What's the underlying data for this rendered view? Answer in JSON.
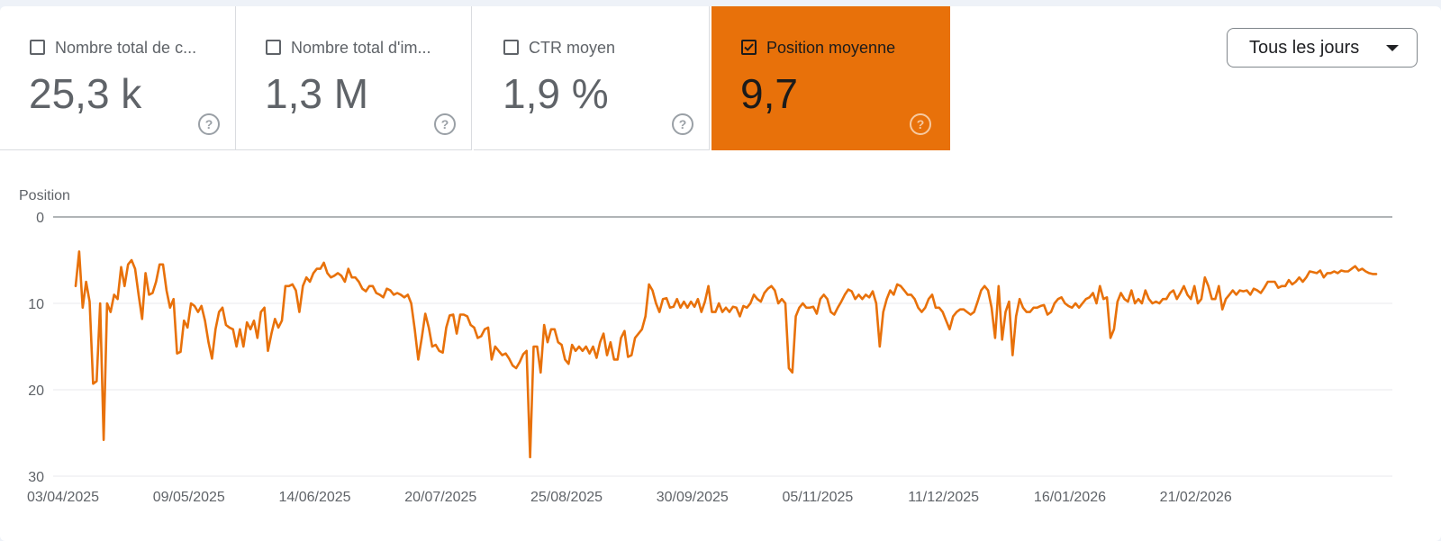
{
  "metrics": [
    {
      "label": "Nombre total de c...",
      "value": "25,3 k",
      "checked": false
    },
    {
      "label": "Nombre total d'im...",
      "value": "1,3 M",
      "checked": false
    },
    {
      "label": "CTR moyen",
      "value": "1,9 %",
      "checked": false
    },
    {
      "label": "Position moyenne",
      "value": "9,7",
      "checked": true
    }
  ],
  "dropdown": {
    "label": "Tous les jours"
  },
  "help_glyph": "?",
  "colors": {
    "accent": "#e8710a",
    "grid": "#e8eaed",
    "axis": "#5f6368",
    "text": "#5f6368"
  },
  "chart_data": {
    "type": "line",
    "ylabel": "Position",
    "ylim": [
      0,
      30
    ],
    "y_reversed": true,
    "yticks": [
      0,
      10,
      20,
      30
    ],
    "grid": true,
    "x_start": "03/04/2025",
    "xtick_labels": [
      "03/04/2025",
      "09/05/2025",
      "14/06/2025",
      "20/07/2025",
      "25/08/2025",
      "30/09/2025",
      "05/11/2025",
      "11/12/2025",
      "16/01/2026",
      "21/02/2026"
    ],
    "series": [
      {
        "values": [
          8.0,
          4.0,
          10.5,
          7.5,
          9.8,
          19.3,
          19.0,
          10.0,
          25.8,
          10.0,
          11.0,
          9.0,
          9.5,
          5.8,
          8.0,
          5.5,
          5.0,
          6.0,
          9.0,
          11.8,
          6.5,
          9.0,
          8.8,
          7.5,
          5.5,
          5.5,
          8.5,
          10.5,
          9.5,
          15.8,
          15.6,
          12.0,
          12.8,
          10.0,
          10.3,
          11.0,
          10.3,
          12.0,
          14.5,
          16.4,
          13.0,
          11.0,
          10.5,
          12.5,
          12.8,
          13.0,
          15.0,
          13.0,
          15.0,
          12.2,
          13.0,
          12.0,
          14.0,
          11.0,
          10.5,
          15.5,
          13.5,
          11.8,
          12.8,
          12.0,
          8.0,
          8.0,
          7.8,
          8.5,
          11.0,
          8.0,
          7.0,
          7.5,
          6.5,
          6.0,
          6.0,
          5.3,
          6.5,
          7.0,
          6.8,
          6.5,
          6.8,
          7.5,
          6.0,
          7.0,
          7.0,
          7.5,
          8.3,
          8.6,
          8.0,
          8.0,
          8.8,
          9.0,
          9.3,
          8.3,
          8.5,
          9.0,
          8.8,
          9.0,
          9.3,
          9.0,
          10.0,
          13.0,
          16.5,
          14.0,
          11.2,
          12.8,
          15.0,
          14.8,
          15.5,
          15.7,
          12.8,
          11.4,
          11.3,
          13.5,
          11.3,
          11.3,
          11.5,
          12.5,
          12.8,
          14.0,
          13.8,
          13.0,
          12.8,
          16.5,
          15.0,
          15.5,
          16.0,
          15.8,
          16.4,
          17.2,
          17.5,
          16.8,
          15.9,
          15.5,
          27.8,
          15.0,
          15.0,
          18.0,
          12.5,
          14.5,
          13.0,
          13.0,
          14.5,
          14.8,
          16.5,
          17.0,
          14.8,
          15.5,
          15.0,
          15.5,
          15.0,
          15.8,
          15.0,
          16.3,
          14.5,
          13.5,
          16.0,
          14.5,
          16.5,
          16.5,
          14.0,
          13.2,
          16.2,
          16.0,
          14.0,
          13.5,
          13.0,
          11.5,
          7.8,
          8.5,
          10.0,
          11.0,
          9.5,
          9.4,
          10.5,
          10.4,
          9.5,
          10.5,
          9.8,
          10.5,
          9.8,
          10.4,
          9.5,
          11.0,
          9.8,
          8.0,
          11.0,
          11.0,
          10.0,
          11.0,
          10.5,
          11.0,
          10.4,
          10.5,
          11.5,
          10.3,
          10.5,
          10.0,
          9.0,
          9.5,
          9.8,
          8.8,
          8.3,
          8.0,
          8.5,
          10.0,
          9.5,
          10.0,
          17.5,
          18.0,
          11.5,
          10.5,
          10.0,
          10.5,
          10.5,
          10.4,
          11.2,
          9.5,
          9.0,
          9.5,
          11.0,
          11.3,
          10.5,
          9.8,
          9.0,
          8.4,
          8.6,
          9.5,
          9.0,
          9.5,
          9.0,
          9.3,
          8.6,
          10.0,
          15.0,
          11.0,
          9.5,
          8.5,
          9.0,
          7.8,
          8.0,
          8.5,
          9.0,
          9.0,
          9.5,
          10.5,
          11.0,
          10.5,
          9.5,
          9.0,
          10.5,
          10.5,
          11.0,
          12.0,
          13.0,
          11.5,
          11.0,
          10.7,
          10.7,
          11.0,
          11.3,
          11.0,
          9.8,
          8.5,
          8.0,
          8.5,
          10.5,
          14.0,
          8.0,
          14.2,
          11.0,
          9.8,
          16.0,
          11.5,
          9.5,
          10.5,
          11.0,
          11.0,
          10.5,
          10.5,
          10.3,
          10.2,
          11.3,
          11.0,
          10.0,
          9.5,
          9.3,
          10.0,
          10.3,
          10.5,
          10.0,
          10.5,
          10.0,
          9.5,
          9.3,
          8.8,
          10.0,
          8.0,
          9.5,
          9.3,
          14.0,
          13.0,
          9.8,
          8.8,
          9.5,
          9.8,
          8.5,
          10.0,
          9.5,
          10.0,
          8.5,
          9.5,
          10.0,
          9.8,
          10.0,
          9.5,
          9.5,
          8.8,
          8.5,
          9.5,
          8.8,
          8.0,
          9.0,
          9.5,
          8.0,
          10.0,
          9.5,
          7.0,
          8.0,
          9.5,
          9.5,
          8.0,
          10.7,
          9.5,
          9.0,
          8.5,
          9.0,
          8.5,
          8.6,
          8.5,
          9.0,
          8.3,
          8.5,
          8.8,
          8.2,
          7.5,
          7.5,
          7.5,
          8.2,
          8.0,
          8.0,
          7.3,
          7.8,
          7.5,
          7.0,
          7.5,
          7.0,
          6.3,
          6.4,
          6.5,
          6.2,
          7.0,
          6.5,
          6.5,
          6.3,
          6.5,
          6.2,
          6.3,
          6.3,
          6.0,
          5.7,
          6.2,
          6.0,
          6.3,
          6.5,
          6.6,
          6.6
        ]
      }
    ]
  }
}
